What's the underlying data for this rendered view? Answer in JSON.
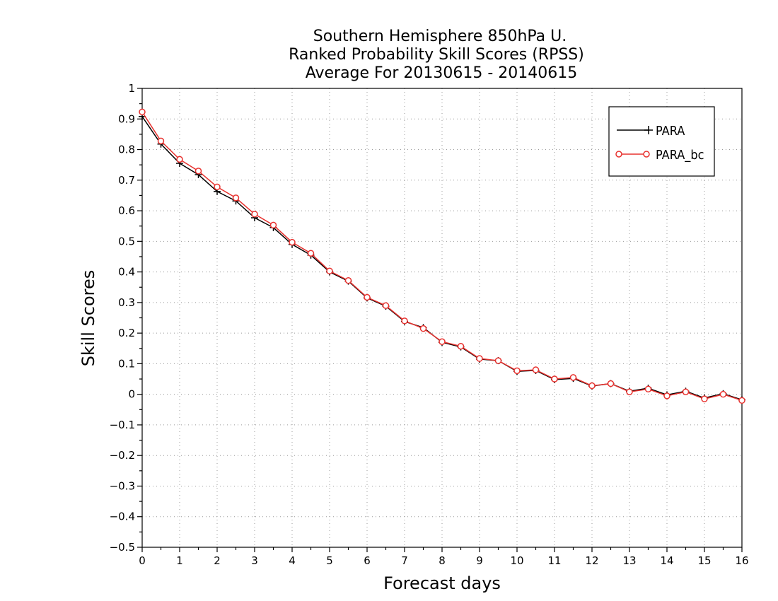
{
  "chart_data": {
    "type": "line",
    "title": [
      "Southern Hemisphere 850hPa U.",
      "Ranked Probability Skill Scores (RPSS)",
      "Average For 20130615 - 20140615"
    ],
    "xlabel": "Forecast days",
    "ylabel": "Skill Scores",
    "xlim": [
      0,
      16
    ],
    "ylim": [
      -0.5,
      1
    ],
    "xticks": [
      0,
      1,
      2,
      3,
      4,
      5,
      6,
      7,
      8,
      9,
      10,
      11,
      12,
      13,
      14,
      15,
      16
    ],
    "yticks": [
      -0.5,
      -0.4,
      -0.3,
      -0.2,
      -0.1,
      0,
      0.1,
      0.2,
      0.3,
      0.4,
      0.5,
      0.6,
      0.7,
      0.8,
      0.9,
      1
    ],
    "grid": true,
    "legend_position": "top-right",
    "x": [
      0,
      0.5,
      1,
      1.5,
      2,
      2.5,
      3,
      3.5,
      4,
      4.5,
      5,
      5.5,
      6,
      6.5,
      7,
      7.5,
      8,
      8.5,
      9,
      9.5,
      10,
      10.5,
      11,
      11.5,
      12,
      12.5,
      13,
      13.5,
      14,
      14.5,
      15,
      15.5,
      16
    ],
    "series": [
      {
        "name": "PARA",
        "color": "#000000",
        "marker": "plus",
        "values": [
          0.908,
          0.818,
          0.755,
          0.718,
          0.663,
          0.632,
          0.577,
          0.545,
          0.49,
          0.455,
          0.4,
          0.37,
          0.315,
          0.288,
          0.238,
          0.218,
          0.17,
          0.155,
          0.115,
          0.11,
          0.075,
          0.078,
          0.048,
          0.052,
          0.027,
          0.035,
          0.01,
          0.02,
          -0.002,
          0.01,
          -0.012,
          0.002,
          -0.018
        ]
      },
      {
        "name": "PARA_bc",
        "color": "#e8322f",
        "marker": "circle",
        "values": [
          0.923,
          0.828,
          0.768,
          0.73,
          0.678,
          0.642,
          0.589,
          0.553,
          0.497,
          0.461,
          0.403,
          0.372,
          0.317,
          0.29,
          0.24,
          0.215,
          0.172,
          0.157,
          0.117,
          0.11,
          0.077,
          0.08,
          0.05,
          0.055,
          0.028,
          0.035,
          0.008,
          0.017,
          -0.005,
          0.008,
          -0.015,
          0.0,
          -0.02
        ]
      }
    ]
  }
}
